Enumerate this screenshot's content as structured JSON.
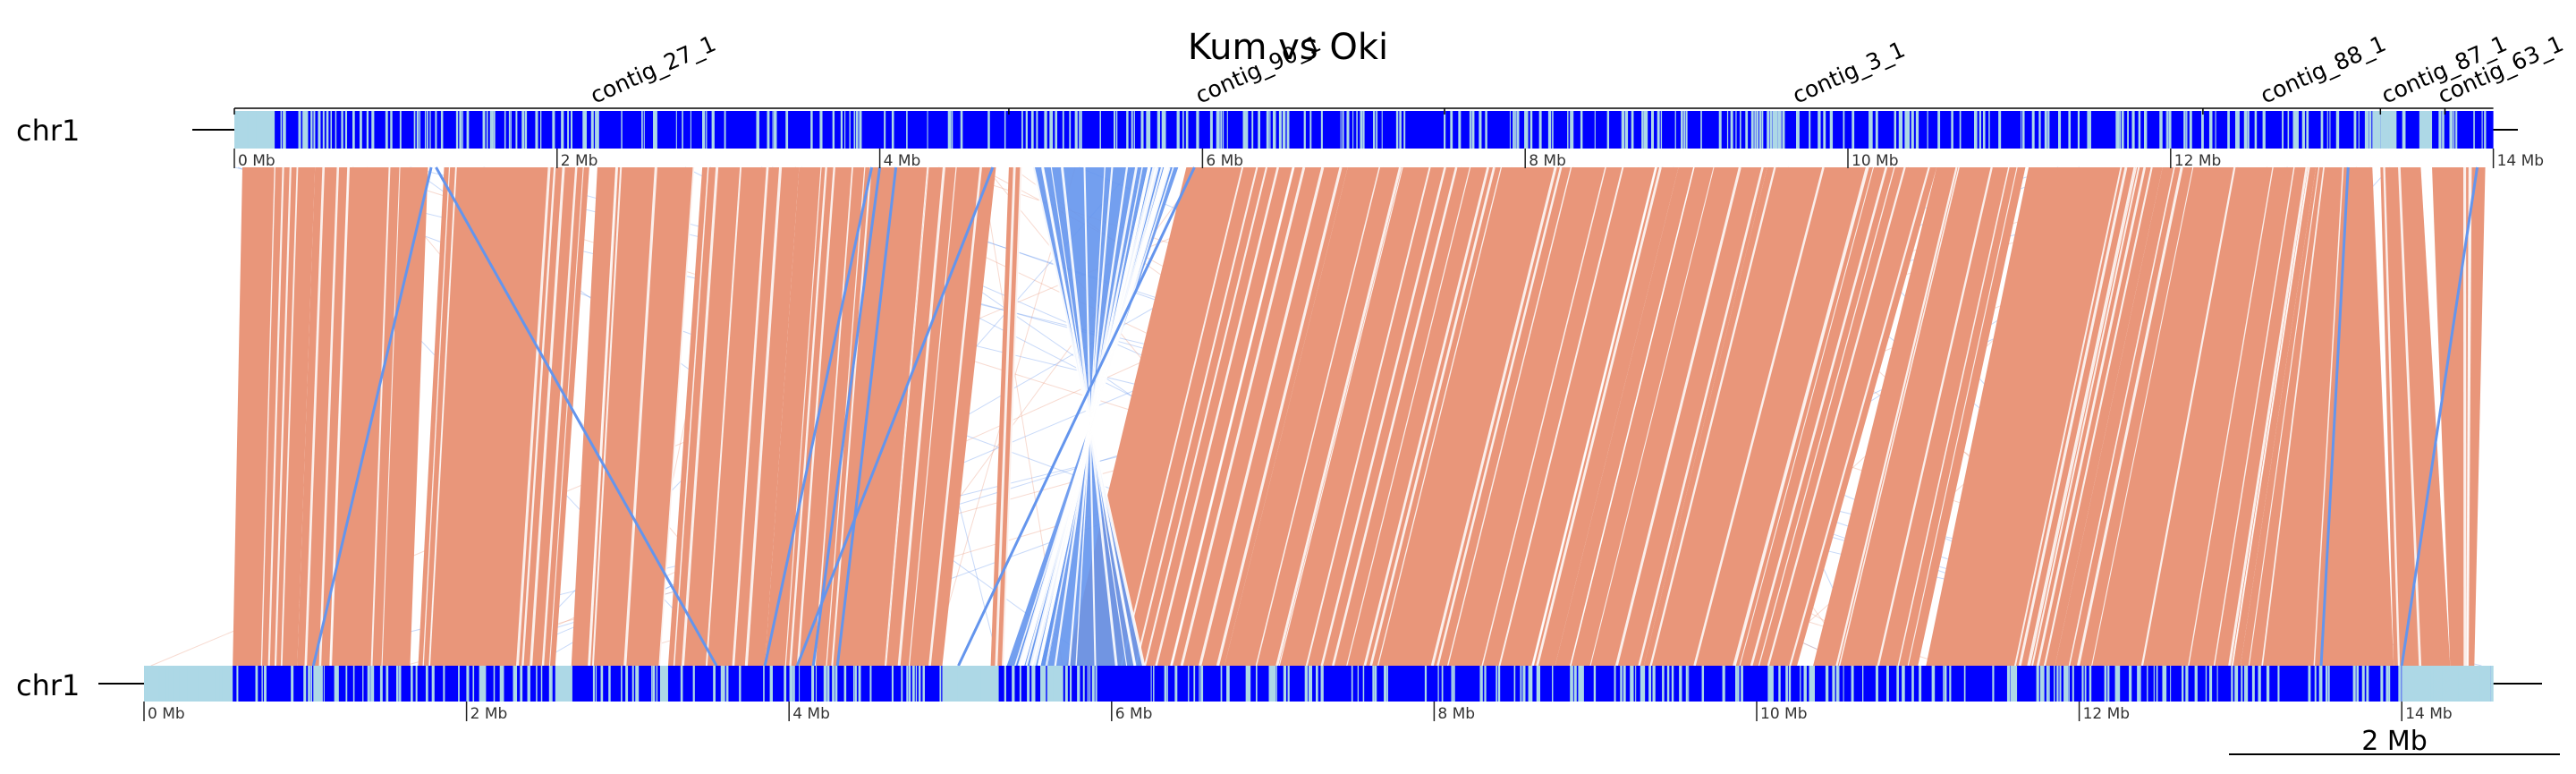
{
  "chart_data": {
    "type": "synteny",
    "title": "Kum vs Oki",
    "colors": {
      "forward": "#e9967a",
      "inverted": "#6495ed",
      "block_dark": "#0000ff",
      "block_light": "#add8e6",
      "axis": "#000000"
    },
    "top_track": {
      "label": "chr1",
      "length_mb": 14.0,
      "contigs": [
        {
          "name": "contig_27_1",
          "start": 0.0,
          "end": 4.8
        },
        {
          "name": "contig_90_1",
          "start": 4.8,
          "end": 7.5
        },
        {
          "name": "contig_3_1",
          "start": 7.5,
          "end": 12.2
        },
        {
          "name": "contig_88_1",
          "start": 12.2,
          "end": 13.3
        },
        {
          "name": "contig_87_1",
          "start": 13.3,
          "end": 13.7
        },
        {
          "name": "contig_63_1",
          "start": 13.7,
          "end": 14.0
        }
      ],
      "light_regions": [
        [
          0.0,
          0.25
        ],
        [
          0.3,
          0.32
        ],
        [
          13.25,
          13.3
        ],
        [
          13.3,
          13.4
        ],
        [
          13.55,
          13.62
        ]
      ]
    },
    "bottom_track": {
      "label": "chr1",
      "length_mb": 14.55,
      "light_regions": [
        [
          0.0,
          0.55
        ],
        [
          1.05,
          1.1
        ],
        [
          2.55,
          2.65
        ],
        [
          3.2,
          3.25
        ],
        [
          4.95,
          5.3
        ],
        [
          5.6,
          5.7
        ],
        [
          14.0,
          14.55
        ]
      ]
    },
    "ticks": {
      "top": [
        "0 Mb",
        "2 Mb",
        "4 Mb",
        "6 Mb",
        "8 Mb",
        "10 Mb",
        "12 Mb",
        "14 Mb"
      ],
      "bottom": [
        "0 Mb",
        "2 Mb",
        "4 Mb",
        "6 Mb",
        "8 Mb",
        "10 Mb",
        "12 Mb",
        "14 Mb"
      ]
    },
    "forward_blocks": [
      {
        "top": [
          0.05,
          0.5
        ],
        "bottom": [
          0.55,
          0.95
        ]
      },
      {
        "top": [
          0.5,
          1.2
        ],
        "bottom": [
          0.95,
          1.65
        ]
      },
      {
        "top": [
          1.3,
          2.2
        ],
        "bottom": [
          1.7,
          2.55
        ]
      },
      {
        "top": [
          2.25,
          2.85
        ],
        "bottom": [
          2.65,
          3.2
        ]
      },
      {
        "top": [
          2.9,
          3.5
        ],
        "bottom": [
          3.25,
          3.85
        ]
      },
      {
        "top": [
          3.5,
          4.3
        ],
        "bottom": [
          3.85,
          4.6
        ]
      },
      {
        "top": [
          4.3,
          4.72
        ],
        "bottom": [
          4.6,
          4.95
        ]
      },
      {
        "top": [
          4.8,
          4.88
        ],
        "bottom": [
          5.25,
          5.33
        ]
      },
      {
        "top": [
          5.9,
          6.9
        ],
        "bottom": [
          5.72,
          6.7
        ]
      },
      {
        "top": [
          6.9,
          7.85
        ],
        "bottom": [
          6.7,
          7.65
        ]
      },
      {
        "top": [
          7.85,
          8.95
        ],
        "bottom": [
          7.65,
          8.75
        ]
      },
      {
        "top": [
          8.95,
          9.5
        ],
        "bottom": [
          8.75,
          9.3
        ]
      },
      {
        "top": [
          9.5,
          10.55
        ],
        "bottom": [
          9.3,
          10.25
        ]
      },
      {
        "top": [
          10.55,
          11.1
        ],
        "bottom": [
          10.35,
          11.0
        ]
      },
      {
        "top": [
          11.12,
          11.95
        ],
        "bottom": [
          11.05,
          11.85
        ]
      },
      {
        "top": [
          11.95,
          12.9
        ],
        "bottom": [
          11.85,
          13.0
        ]
      },
      {
        "top": [
          12.9,
          13.25
        ],
        "bottom": [
          13.0,
          13.95
        ]
      },
      {
        "top": [
          13.3,
          13.55
        ],
        "bottom": [
          13.95,
          14.3
        ]
      },
      {
        "top": [
          13.62,
          13.95
        ],
        "bottom": [
          14.3,
          14.45
        ]
      }
    ],
    "inverted_blocks": [
      {
        "top": [
          4.95,
          5.85
        ],
        "bottom": [
          6.2,
          5.35
        ]
      },
      {
        "top": [
          5.62,
          5.82
        ],
        "bottom": [
          5.6,
          5.4
        ]
      }
    ],
    "inverted_lines": [
      {
        "top": 1.22,
        "bottom": 1.05
      },
      {
        "top": 1.25,
        "bottom": 3.55
      },
      {
        "top": 3.95,
        "bottom": 3.85
      },
      {
        "top": 4.0,
        "bottom": 4.15
      },
      {
        "top": 4.1,
        "bottom": 4.3
      },
      {
        "top": 4.7,
        "bottom": 4.05
      },
      {
        "top": 5.95,
        "bottom": 5.05
      },
      {
        "top": 13.1,
        "bottom": 13.5
      },
      {
        "top": 13.9,
        "bottom": 14.0
      }
    ],
    "scale_bar": {
      "label": "2 Mb",
      "length_mb": 2.0
    }
  }
}
